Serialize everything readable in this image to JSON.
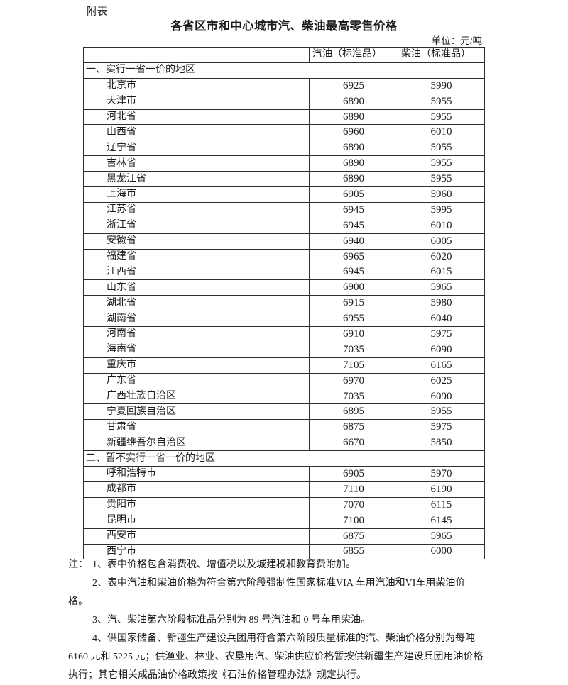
{
  "page": {
    "annex_label": "附表",
    "title": "各省区市和中心城市汽、柴油最高零售价格",
    "unit_label": "单位：元/吨"
  },
  "table": {
    "columns": [
      "",
      "汽油（标准品）",
      "柴油（标准品）"
    ],
    "sections": [
      {
        "header": "一、实行一省一价的地区",
        "rows": [
          {
            "region": "北京市",
            "gasoline": "6925",
            "diesel": "5990"
          },
          {
            "region": "天津市",
            "gasoline": "6890",
            "diesel": "5955"
          },
          {
            "region": "河北省",
            "gasoline": "6890",
            "diesel": "5955"
          },
          {
            "region": "山西省",
            "gasoline": "6960",
            "diesel": "6010"
          },
          {
            "region": "辽宁省",
            "gasoline": "6890",
            "diesel": "5955"
          },
          {
            "region": "吉林省",
            "gasoline": "6890",
            "diesel": "5955"
          },
          {
            "region": "黑龙江省",
            "gasoline": "6890",
            "diesel": "5955"
          },
          {
            "region": "上海市",
            "gasoline": "6905",
            "diesel": "5960"
          },
          {
            "region": "江苏省",
            "gasoline": "6945",
            "diesel": "5995"
          },
          {
            "region": "浙江省",
            "gasoline": "6945",
            "diesel": "6010"
          },
          {
            "region": "安徽省",
            "gasoline": "6940",
            "diesel": "6005"
          },
          {
            "region": "福建省",
            "gasoline": "6965",
            "diesel": "6020"
          },
          {
            "region": "江西省",
            "gasoline": "6945",
            "diesel": "6015"
          },
          {
            "region": "山东省",
            "gasoline": "6900",
            "diesel": "5965"
          },
          {
            "region": "湖北省",
            "gasoline": "6915",
            "diesel": "5980"
          },
          {
            "region": "湖南省",
            "gasoline": "6955",
            "diesel": "6040"
          },
          {
            "region": "河南省",
            "gasoline": "6910",
            "diesel": "5975"
          },
          {
            "region": "海南省",
            "gasoline": "7035",
            "diesel": "6090"
          },
          {
            "region": "重庆市",
            "gasoline": "7105",
            "diesel": "6165"
          },
          {
            "region": "广东省",
            "gasoline": "6970",
            "diesel": "6025"
          },
          {
            "region": "广西壮族自治区",
            "gasoline": "7035",
            "diesel": "6090"
          },
          {
            "region": "宁夏回族自治区",
            "gasoline": "6895",
            "diesel": "5955"
          },
          {
            "region": "甘肃省",
            "gasoline": "6875",
            "diesel": "5975"
          },
          {
            "region": "新疆维吾尔自治区",
            "gasoline": "6670",
            "diesel": "5850"
          }
        ]
      },
      {
        "header": "二、暂不实行一省一价的地区",
        "rows": [
          {
            "region": "呼和浩特市",
            "gasoline": "6905",
            "diesel": "5970"
          },
          {
            "region": "成都市",
            "gasoline": "7110",
            "diesel": "6190"
          },
          {
            "region": "贵阳市",
            "gasoline": "7070",
            "diesel": "6115"
          },
          {
            "region": "昆明市",
            "gasoline": "7100",
            "diesel": "6145"
          },
          {
            "region": "西安市",
            "gasoline": "6875",
            "diesel": "5965"
          },
          {
            "region": "西宁市",
            "gasoline": "6855",
            "diesel": "6000"
          }
        ]
      }
    ]
  },
  "notes": {
    "label": "注：",
    "lines": [
      {
        "text": "1、表中价格包含消费税、增值税以及城建税和教育费附加。",
        "style": "first"
      },
      {
        "text": "2、表中汽油和柴油价格为符合第六阶段强制性国家标准VIA 车用汽油和VI车用柴油价",
        "style": "indent"
      },
      {
        "text": "格。",
        "style": "flush"
      },
      {
        "text": "3、汽、柴油第六阶段标准品分别为 89 号汽油和 0 号车用柴油。",
        "style": "indent"
      },
      {
        "text": "4、供国家储备、新疆生产建设兵团用符合第六阶段质量标准的汽、柴油价格分别为每吨",
        "style": "indent"
      },
      {
        "text": "6160 元和 5225 元；供渔业、林业、农垦用汽、柴油供应价格暂按供新疆生产建设兵团用油价格",
        "style": "flush"
      },
      {
        "text": "执行；其它相关成品油价格政策按《石油价格管理办法》规定执行。",
        "style": "flush"
      }
    ]
  }
}
